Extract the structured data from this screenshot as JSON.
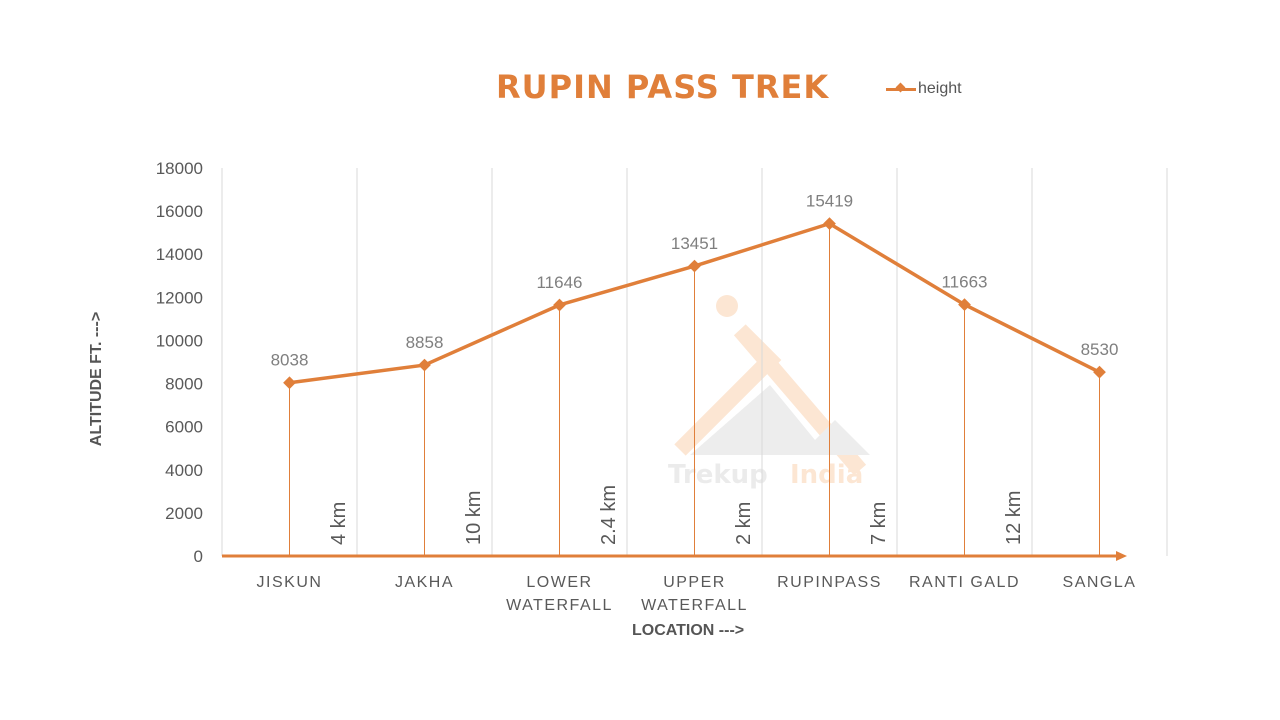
{
  "chart_data": {
    "type": "line",
    "title": "RUPIN PASS TREK",
    "xlabel": "LOCATION --->",
    "ylabel": "ALTITUDE FT. --->",
    "ylim": [
      0,
      18000
    ],
    "yticks": [
      0,
      2000,
      4000,
      6000,
      8000,
      10000,
      12000,
      14000,
      16000,
      18000
    ],
    "categories": [
      "JISKUN",
      "JAKHA",
      "LOWER WATERFALL",
      "UPPER WATERFALL",
      "RUPINPASS",
      "RANTI GALD",
      "SANGLA"
    ],
    "series": [
      {
        "name": "height",
        "values": [
          8038,
          8858,
          11646,
          13451,
          15419,
          11663,
          8530
        ]
      }
    ],
    "annotations": {
      "segment_distances": [
        "4 km",
        "10 km",
        "2.4 km",
        "2 km",
        "7 km",
        "12 km"
      ]
    },
    "legend_position": "top-right",
    "grid": "vertical",
    "watermark": "Trekup India",
    "colors": {
      "series": "#E07F3A"
    }
  },
  "legend": {
    "label": "height"
  }
}
